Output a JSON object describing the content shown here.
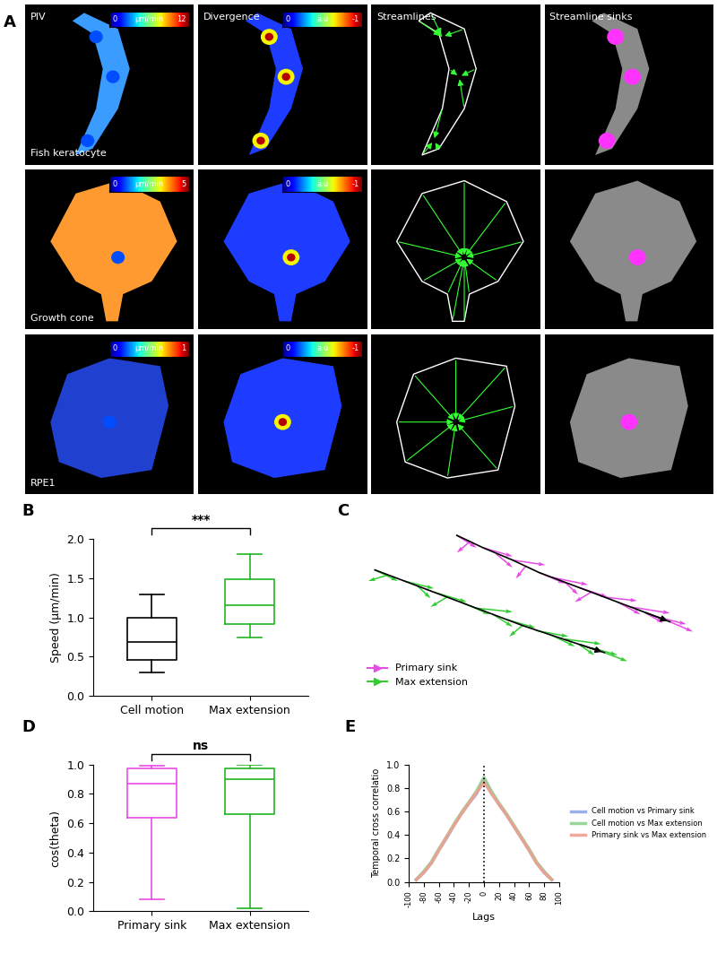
{
  "panel_a": {
    "panel": "A",
    "columns": [
      "PIV",
      "Divergence",
      "Streamlines",
      "Streamline sinks"
    ],
    "rows": [
      {
        "label": "Fish keratocyte",
        "piv_scale": {
          "min": 0,
          "max": 12,
          "unit": "µm/min"
        },
        "divergence_scale": {
          "min": 0,
          "max": -1,
          "unit": "a.u"
        }
      },
      {
        "label": "Growth cone",
        "piv_scale": {
          "min": 0,
          "max": 5,
          "unit": "µm/min"
        },
        "divergence_scale": {
          "min": 0,
          "max": -1,
          "unit": "a.u"
        }
      },
      {
        "label": "RPE1",
        "piv_scale": {
          "min": 0,
          "max": 1,
          "unit": "µm/min"
        },
        "divergence_scale": {
          "min": 0,
          "max": -1,
          "unit": "a.u"
        }
      }
    ]
  },
  "chart_data": [
    {
      "panel": "B",
      "type": "box",
      "categories": [
        "Cell motion",
        "Max extension"
      ],
      "colors": [
        "#000000",
        "#22b422"
      ],
      "values": [
        [
          0.3,
          0.46,
          0.69,
          0.99,
          1.29
        ],
        [
          0.74,
          0.91,
          1.15,
          1.49,
          1.81
        ]
      ],
      "ylabel": "Speed (µm/min)",
      "ylim": [
        0,
        2.0
      ],
      "yticks": [
        {
          "value": 0,
          "label": "0.0"
        },
        {
          "value": 0.5,
          "label": "0.5"
        },
        {
          "value": 1.0,
          "label": "1.0"
        },
        {
          "value": 1.5,
          "label": "1.5"
        },
        {
          "value": 2.0,
          "label": "2.0"
        }
      ],
      "annotations": [
        "***"
      ]
    },
    {
      "panel": "C",
      "type": "trajectory",
      "xlim": [
        -5,
        100
      ],
      "ylim": [
        -30,
        105
      ],
      "tick_labels": false,
      "legend": "lower left",
      "series": [
        {
          "name": "Primary sink",
          "color": "#e64de6",
          "path_x": [
            25,
            33,
            42,
            50,
            58,
            66,
            74,
            82,
            90
          ],
          "path_y": [
            100,
            90,
            80,
            70,
            62,
            54,
            46,
            38,
            30
          ],
          "arrows": [
            [
              25,
              100,
              6,
              -10
            ],
            [
              29,
              95,
              -4,
              -9
            ],
            [
              33,
              90,
              9,
              -7
            ],
            [
              37,
              85,
              5,
              -11
            ],
            [
              42,
              80,
              10,
              -4
            ],
            [
              46,
              75,
              -3,
              -10
            ],
            [
              50,
              70,
              8,
              -9
            ],
            [
              54,
              66,
              11,
              -6
            ],
            [
              58,
              62,
              4,
              -10
            ],
            [
              62,
              58,
              9,
              -8
            ],
            [
              66,
              54,
              -5,
              -8
            ],
            [
              70,
              50,
              10,
              -3
            ],
            [
              74,
              46,
              7,
              -10
            ],
            [
              78,
              42,
              12,
              -5
            ],
            [
              82,
              38,
              6,
              -9
            ],
            [
              86,
              34,
              9,
              -6
            ],
            [
              90,
              30,
              7,
              -8
            ]
          ]
        },
        {
          "name": "Max extension",
          "color": "#33cc33",
          "path_x": [
            0,
            9,
            18,
            27,
            36,
            45,
            54,
            62,
            70
          ],
          "path_y": [
            72,
            63,
            54,
            45,
            36,
            27,
            19,
            12,
            5
          ],
          "arrows": [
            [
              0,
              72,
              7,
              -9
            ],
            [
              4,
              68,
              -6,
              -5
            ],
            [
              9,
              63,
              9,
              -6
            ],
            [
              13,
              59,
              4,
              -10
            ],
            [
              18,
              54,
              10,
              -8
            ],
            [
              22,
              50,
              -5,
              -8
            ],
            [
              27,
              45,
              8,
              -9
            ],
            [
              31,
              41,
              11,
              -3
            ],
            [
              36,
              36,
              6,
              -10
            ],
            [
              40,
              32,
              9,
              -7
            ],
            [
              45,
              27,
              -4,
              -9
            ],
            [
              49,
              23,
              10,
              -5
            ],
            [
              54,
              19,
              7,
              -9
            ],
            [
              58,
              16,
              11,
              -4
            ],
            [
              62,
              12,
              5,
              -9
            ],
            [
              66,
              9,
              8,
              -6
            ],
            [
              70,
              5,
              7,
              -7
            ]
          ]
        }
      ]
    },
    {
      "panel": "D",
      "type": "box",
      "categories": [
        "Primary sink",
        "Max extension"
      ],
      "colors": [
        "#e64de6",
        "#22b422"
      ],
      "values": [
        [
          0.08,
          0.64,
          0.87,
          0.97,
          0.99
        ],
        [
          0.02,
          0.66,
          0.9,
          0.97,
          0.995
        ]
      ],
      "ylabel": "cos(theta)",
      "ylim": [
        0,
        1.0
      ],
      "yticks": [
        {
          "value": 0,
          "label": "0.0"
        },
        {
          "value": 0.2,
          "label": "0.2"
        },
        {
          "value": 0.4,
          "label": "0.4"
        },
        {
          "value": 0.6,
          "label": "0.6"
        },
        {
          "value": 0.8,
          "label": "0.8"
        },
        {
          "value": 1.0,
          "label": "1.0"
        }
      ],
      "annotations": [
        "ns"
      ]
    },
    {
      "panel": "E",
      "type": "line",
      "xlabel": "Lags",
      "ylabel": "Temporal cross correlatio",
      "x": [
        -90,
        -80,
        -70,
        -60,
        -50,
        -40,
        -30,
        -20,
        -10,
        0,
        10,
        20,
        30,
        40,
        50,
        60,
        70,
        80,
        90
      ],
      "xlim": [
        -100,
        100
      ],
      "xticks": [
        -100,
        -80,
        -60,
        -40,
        -20,
        0,
        20,
        40,
        60,
        80,
        100
      ],
      "ylim": [
        0,
        1.0
      ],
      "yticks": [
        {
          "value": 0,
          "label": "0.0"
        },
        {
          "value": 0.2,
          "label": "0.2"
        },
        {
          "value": 0.4,
          "label": "0.4"
        },
        {
          "value": 0.6,
          "label": "0.6"
        },
        {
          "value": 0.8,
          "label": "0.8"
        },
        {
          "value": 1.0,
          "label": "1.0"
        }
      ],
      "vline": 0,
      "legend": "center left",
      "series": [
        {
          "name": "Cell motion vs Primary sink",
          "color": "#8fa8e8",
          "values": [
            0.02,
            0.08,
            0.16,
            0.27,
            0.37,
            0.48,
            0.58,
            0.67,
            0.75,
            0.87,
            0.76,
            0.66,
            0.57,
            0.47,
            0.37,
            0.27,
            0.16,
            0.08,
            0.02
          ]
        },
        {
          "name": "Cell motion vs Max extension",
          "color": "#8fd18f",
          "values": [
            0.02,
            0.09,
            0.17,
            0.28,
            0.38,
            0.49,
            0.59,
            0.68,
            0.77,
            0.89,
            0.77,
            0.67,
            0.58,
            0.48,
            0.38,
            0.28,
            0.17,
            0.09,
            0.02
          ]
        },
        {
          "name": "Primary sink vs Max extension",
          "color": "#f0a090",
          "values": [
            0.02,
            0.08,
            0.16,
            0.27,
            0.38,
            0.48,
            0.58,
            0.67,
            0.76,
            0.85,
            0.75,
            0.66,
            0.57,
            0.47,
            0.37,
            0.27,
            0.16,
            0.08,
            0.02
          ]
        }
      ]
    }
  ]
}
